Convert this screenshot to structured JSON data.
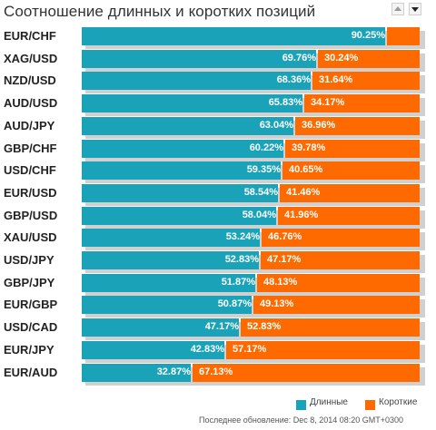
{
  "title": "Соотношение длинных и коротких позиций",
  "colors": {
    "long": "#1aa3b8",
    "short": "#ff6a00"
  },
  "sort": {
    "up_icon": "sort-asc-icon",
    "down_icon": "sort-desc-icon"
  },
  "legend": {
    "long": "Длинные",
    "short": "Короткие"
  },
  "footer": "Последнее обновление: Dec 8, 2014 08:20 GMT+0300",
  "chart_data": {
    "type": "bar",
    "orientation": "horizontal",
    "stacked": true,
    "title": "Соотношение длинных и коротких позиций",
    "categories": [
      "EUR/CHF",
      "XAG/USD",
      "NZD/USD",
      "AUD/USD",
      "AUD/JPY",
      "GBP/CHF",
      "USD/CHF",
      "EUR/USD",
      "GBP/USD",
      "XAU/USD",
      "USD/JPY",
      "GBP/JPY",
      "EUR/GBP",
      "USD/CAD",
      "EUR/JPY",
      "EUR/AUD"
    ],
    "series": [
      {
        "name": "Длинные",
        "values": [
          90.25,
          69.76,
          68.36,
          65.83,
          63.04,
          60.22,
          59.35,
          58.54,
          58.04,
          53.24,
          52.83,
          51.87,
          50.87,
          47.17,
          42.83,
          32.87
        ]
      },
      {
        "name": "Короткие",
        "values": [
          null,
          30.24,
          31.64,
          34.17,
          36.96,
          39.78,
          40.65,
          41.46,
          41.96,
          46.76,
          47.17,
          48.13,
          49.13,
          52.83,
          57.17,
          67.13
        ]
      }
    ],
    "xlim": [
      0,
      100
    ],
    "legend_position": "bottom-right",
    "grid": false
  }
}
